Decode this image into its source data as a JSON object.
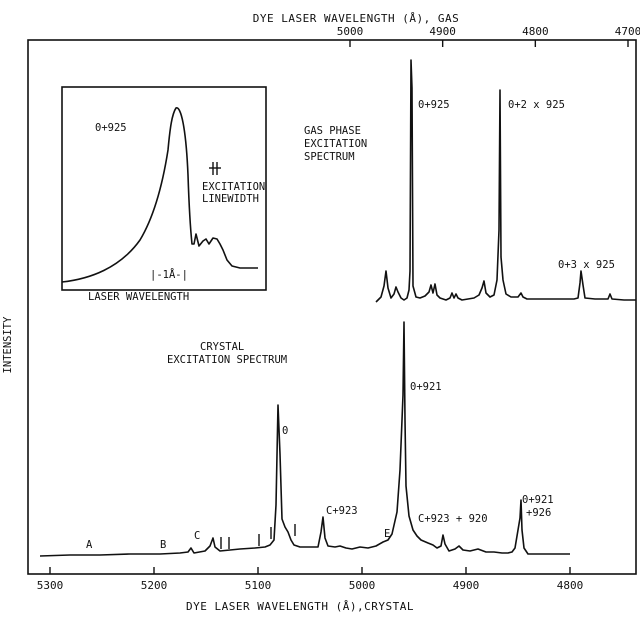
{
  "chart_data": {
    "type": "line",
    "ylabel": "INTENSITY",
    "top_axis": {
      "label": "DYE LASER WAVELENGTH (Å), GAS",
      "ticks": [
        5000,
        4900,
        4800,
        4700
      ]
    },
    "bottom_axis": {
      "label": "DYE LASER WAVELENGTH (Å),CRYSTAL",
      "ticks": [
        5300,
        5200,
        5100,
        5000,
        4900,
        4800
      ]
    },
    "panels": [
      {
        "name": "gas",
        "title_lines": [
          "GAS PHASE",
          "EXCITATION",
          "SPECTRUM"
        ],
        "x_axis": "top",
        "peaks": [
          {
            "x": 4935,
            "label": "0+925"
          },
          {
            "x": 4785,
            "label": "0+2 x 925"
          },
          {
            "x": 4700,
            "label": "0+3 x 925"
          }
        ]
      },
      {
        "name": "crystal",
        "title_lines": [
          "CRYSTAL",
          "EXCITATION SPECTRUM"
        ],
        "x_axis": "bottom",
        "peaks": [
          {
            "x": 5080,
            "label": "0"
          },
          {
            "x": 5040,
            "label": "C+923"
          },
          {
            "x": 4965,
            "label": "0+921"
          },
          {
            "x": 4940,
            "label": "C+923 + 920"
          },
          {
            "x": 4845,
            "label": "0+921 +926"
          }
        ],
        "features": [
          {
            "x": 5258,
            "label": "A"
          },
          {
            "x": 5185,
            "label": "B"
          },
          {
            "x": 5163,
            "label": "C"
          },
          {
            "x": 4978,
            "label": "E"
          }
        ]
      }
    ],
    "inset": {
      "peak_label": "0+925",
      "linewidth_label_lines": [
        "EXCITATION",
        "LINEWIDTH"
      ],
      "scale_label": "|-1Å-|",
      "xlabel": "LASER WAVELENGTH"
    }
  }
}
